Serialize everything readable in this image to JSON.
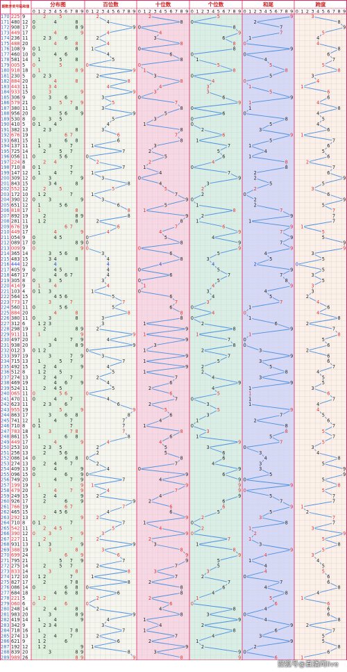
{
  "chart_data": {
    "type": "table",
    "header": {
      "period": "期数",
      "number": "开奖号码",
      "sum": "和值",
      "distribution": "分布图",
      "hundreds": "百位数",
      "tens": "十位数",
      "units": "个位数",
      "sum_tail": "和尾",
      "span": "跨度"
    },
    "digit_labels": [
      "0",
      "1",
      "2",
      "3",
      "4",
      "5",
      "6",
      "7",
      "8",
      "9"
    ],
    "rows": [
      {
        "p": "170",
        "n": "225",
        "s": "9"
      },
      {
        "p": "171",
        "n": "480",
        "s": "12"
      },
      {
        "p": "172",
        "n": "908",
        "s": "17"
      },
      {
        "p": "173",
        "n": "449",
        "s": "17"
      },
      {
        "p": "174",
        "n": "236",
        "s": "11"
      },
      {
        "p": "175",
        "n": "488",
        "s": "20"
      },
      {
        "p": "176",
        "n": "108",
        "s": "9"
      },
      {
        "p": "177",
        "n": "460",
        "s": "10"
      },
      {
        "p": "178",
        "n": "581",
        "s": "14"
      },
      {
        "p": "179",
        "n": "005",
        "s": "5"
      },
      {
        "p": "180",
        "n": "918",
        "s": "18"
      },
      {
        "p": "181",
        "n": "230",
        "s": "5"
      },
      {
        "p": "182",
        "n": "884",
        "s": "20"
      },
      {
        "p": "183",
        "n": "443",
        "s": "11"
      },
      {
        "p": "184",
        "n": "933",
        "s": "15"
      },
      {
        "p": "185",
        "n": "306",
        "s": "9"
      },
      {
        "p": "186",
        "n": "579",
        "s": "21"
      },
      {
        "p": "187",
        "n": "380",
        "s": "11"
      },
      {
        "p": "188",
        "n": "956",
        "s": "20"
      },
      {
        "p": "189",
        "n": "530",
        "s": "8"
      },
      {
        "p": "190",
        "n": "410",
        "s": "5"
      },
      {
        "p": "191",
        "n": "382",
        "s": "13"
      },
      {
        "p": "192",
        "n": "676",
        "s": "19"
      },
      {
        "p": "193",
        "n": "681",
        "s": "15"
      },
      {
        "p": "194",
        "n": "137",
        "s": "11"
      },
      {
        "p": "195",
        "n": "725",
        "s": "14"
      },
      {
        "p": "196",
        "n": "056",
        "s": "11"
      },
      {
        "p": "197",
        "n": "224",
        "s": "8"
      },
      {
        "p": "198",
        "n": "710",
        "s": "8"
      },
      {
        "p": "199",
        "n": "147",
        "s": "12"
      },
      {
        "p": "200",
        "n": "309",
        "s": "12"
      },
      {
        "p": "201",
        "n": "843",
        "s": "15"
      },
      {
        "p": "202",
        "n": "552",
        "s": "12"
      },
      {
        "p": "203",
        "n": "172",
        "s": "10"
      },
      {
        "p": "204",
        "n": "390",
        "s": "12"
      },
      {
        "p": "205",
        "n": "651",
        "s": "12"
      },
      {
        "p": "206",
        "n": "818",
        "s": "17"
      },
      {
        "p": "207",
        "n": "892",
        "s": "19"
      },
      {
        "p": "208",
        "n": "281",
        "s": "11"
      },
      {
        "p": "209",
        "n": "676",
        "s": "19"
      },
      {
        "p": "210",
        "n": "449",
        "s": "17"
      },
      {
        "p": "211",
        "n": "054",
        "s": "9"
      },
      {
        "p": "212",
        "n": "089",
        "s": "17"
      },
      {
        "p": "213",
        "n": "009",
        "s": "9"
      },
      {
        "p": "214",
        "n": "365",
        "s": "14"
      },
      {
        "p": "215",
        "n": "483",
        "s": "15"
      },
      {
        "p": "216",
        "n": "444",
        "s": "12"
      },
      {
        "p": "217",
        "n": "405",
        "s": "9"
      },
      {
        "p": "218",
        "n": "467",
        "s": "17"
      },
      {
        "p": "219",
        "n": "305",
        "s": "8"
      },
      {
        "p": "220",
        "n": "414",
        "s": "9"
      },
      {
        "p": "221",
        "n": "103",
        "s": "4"
      },
      {
        "p": "222",
        "n": "564",
        "s": "15"
      },
      {
        "p": "223",
        "n": "773",
        "s": "17"
      },
      {
        "p": "224",
        "n": "560",
        "s": "11"
      },
      {
        "p": "225",
        "n": "884",
        "s": "20"
      },
      {
        "p": "226",
        "n": "380",
        "s": "11"
      },
      {
        "p": "227",
        "n": "312",
        "s": "6"
      },
      {
        "p": "228",
        "n": "298",
        "s": "19"
      },
      {
        "p": "229",
        "n": "911",
        "s": "11"
      },
      {
        "p": "230",
        "n": "497",
        "s": "20"
      },
      {
        "p": "231",
        "n": "938",
        "s": "20"
      },
      {
        "p": "232",
        "n": "012",
        "s": "3"
      },
      {
        "p": "233",
        "n": "397",
        "s": "19"
      },
      {
        "p": "234",
        "n": "715",
        "s": "13"
      },
      {
        "p": "235",
        "n": "492",
        "s": "15"
      },
      {
        "p": "236",
        "n": "512",
        "s": "8"
      },
      {
        "p": "237",
        "n": "274",
        "s": "13"
      },
      {
        "p": "238",
        "n": "469",
        "s": "19"
      },
      {
        "p": "239",
        "n": "524",
        "s": "11"
      },
      {
        "p": "240",
        "n": "065",
        "s": "11"
      },
      {
        "p": "241",
        "n": "470",
        "s": "11"
      },
      {
        "p": "242",
        "n": "623",
        "s": "11"
      },
      {
        "p": "243",
        "n": "955",
        "s": "19"
      },
      {
        "p": "244",
        "n": "863",
        "s": "17"
      },
      {
        "p": "245",
        "n": "741",
        "s": "12"
      },
      {
        "p": "246",
        "n": "710",
        "s": "8"
      },
      {
        "p": "247",
        "n": "783",
        "s": "18"
      },
      {
        "p": "248",
        "n": "861",
        "s": "15"
      },
      {
        "p": "249",
        "n": "449",
        "s": "17"
      },
      {
        "p": "250",
        "n": "253",
        "s": "10"
      },
      {
        "p": "251",
        "n": "256",
        "s": "13"
      },
      {
        "p": "252",
        "n": "086",
        "s": "14"
      },
      {
        "p": "253",
        "n": "274",
        "s": "13"
      },
      {
        "p": "254",
        "n": "409",
        "s": "13"
      },
      {
        "p": "255",
        "n": "096",
        "s": "15"
      },
      {
        "p": "256",
        "n": "749",
        "s": "20"
      },
      {
        "p": "257",
        "n": "199",
        "s": "19"
      },
      {
        "p": "258",
        "n": "479",
        "s": "20"
      },
      {
        "p": "259",
        "n": "249",
        "s": "15"
      },
      {
        "p": "260",
        "n": "926",
        "s": "17"
      },
      {
        "p": "261",
        "n": "766",
        "s": "19"
      },
      {
        "p": "262",
        "n": "465",
        "s": "15"
      },
      {
        "p": "263",
        "n": "292",
        "s": "13"
      },
      {
        "p": "264",
        "n": "710",
        "s": "8"
      },
      {
        "p": "265",
        "n": "542",
        "s": "11"
      },
      {
        "p": "266",
        "n": "390",
        "s": "12"
      },
      {
        "p": "267",
        "n": "227",
        "s": "11"
      },
      {
        "p": "268",
        "n": "931",
        "s": "13"
      },
      {
        "p": "269",
        "n": "388",
        "s": "19"
      },
      {
        "p": "270",
        "n": "699",
        "s": "24"
      },
      {
        "p": "271",
        "n": "795",
        "s": "21"
      },
      {
        "p": "272",
        "n": "275",
        "s": "14"
      },
      {
        "p": "273",
        "n": "833",
        "s": "14"
      },
      {
        "p": "274",
        "n": "172",
        "s": "10"
      },
      {
        "p": "275",
        "n": "827",
        "s": "17"
      },
      {
        "p": "276",
        "n": "086",
        "s": "14"
      },
      {
        "p": "277",
        "n": "684",
        "s": "18"
      },
      {
        "p": "278",
        "n": "221",
        "s": "5"
      },
      {
        "p": "279",
        "n": "060",
        "s": "6"
      },
      {
        "p": "280",
        "n": "248",
        "s": "14"
      },
      {
        "p": "281",
        "n": "983",
        "s": "20"
      },
      {
        "p": "282",
        "n": "419",
        "s": "14"
      },
      {
        "p": "283",
        "n": "342",
        "s": "9"
      },
      {
        "p": "284",
        "n": "718",
        "s": "16"
      },
      {
        "p": "285",
        "n": "274",
        "s": "13"
      },
      {
        "p": "286",
        "n": "621",
        "s": "9"
      },
      {
        "p": "287",
        "n": "192",
        "s": "12"
      },
      {
        "p": "288",
        "n": "839",
        "s": "20"
      },
      {
        "p": "289",
        "n": "989",
        "s": "26"
      }
    ]
  },
  "colors": {
    "frame_border": "#e0245e",
    "period_text": "#2a6db5",
    "highlight_text": "#e03030",
    "blue_row_text": "#1f3fd8",
    "plain_text": "#222222",
    "header_text": "#cc2222",
    "line": "#4a90e2",
    "dist_bg": "#dff2df",
    "hundreds_bg": "#f6f6ee",
    "tens_bg": "#f8d6e3",
    "units_bg": "#d9efe6",
    "sum_tail_bg": "#d6d8f7",
    "span_bg": "#fdf0e8"
  },
  "highlight_rows": [
    "170",
    "173",
    "175",
    "179",
    "180",
    "182",
    "183",
    "184",
    "186",
    "192",
    "197",
    "202",
    "206",
    "209",
    "210",
    "213",
    "220",
    "223",
    "225",
    "229",
    "240",
    "243",
    "247",
    "249",
    "257",
    "258",
    "261",
    "263",
    "265",
    "266",
    "267",
    "269",
    "270",
    "273",
    "278",
    "279",
    "289"
  ],
  "blue_rows": [
    "216"
  ],
  "watermark": "搜狐号@直播间live"
}
